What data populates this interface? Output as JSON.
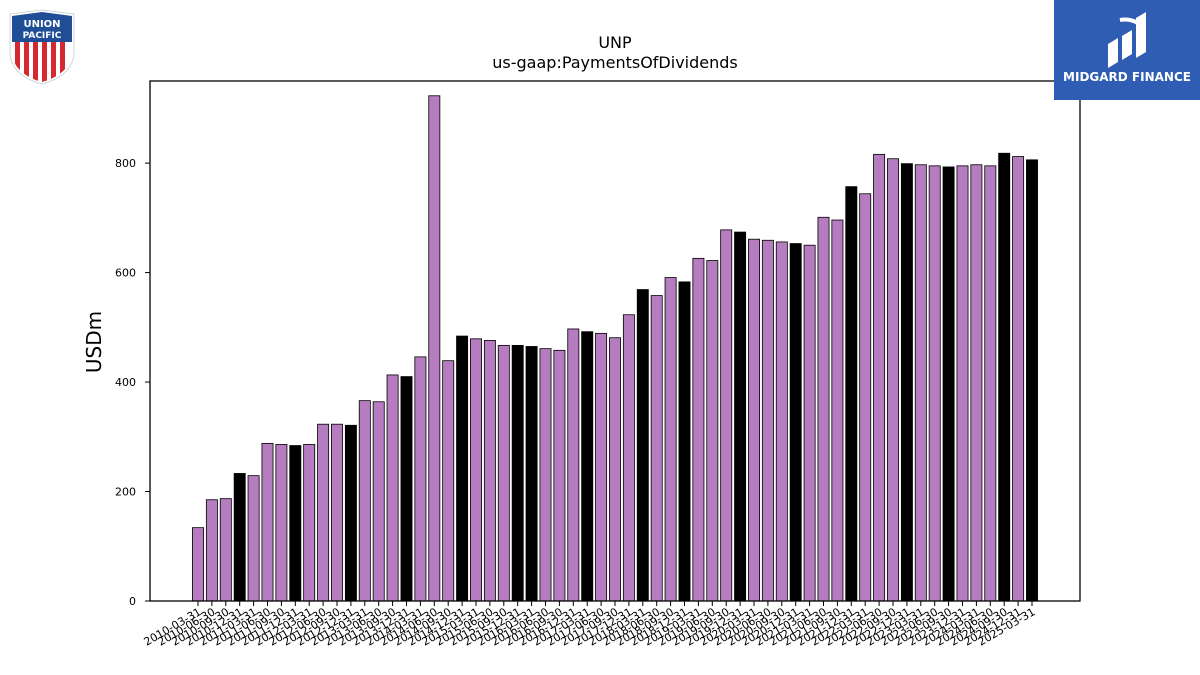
{
  "company_logo": {
    "icon": "union-pacific-shield-icon",
    "text_line1": "UNION",
    "text_line2": "PACIFIC",
    "colors": {
      "blue": "#1f4e96",
      "red": "#d6282f",
      "white": "#ffffff"
    }
  },
  "brand_logo": {
    "icon": "midgard-finance-logo-icon",
    "text": "MIDGARD FINANCE",
    "background": "#2f5db3"
  },
  "chart_data": {
    "type": "bar",
    "title": "UNP",
    "subtitle": "us-gaap:PaymentsOfDividends",
    "ylabel": "USDm",
    "xlabel": "",
    "ylim": [
      0,
      950
    ],
    "yticks": [
      0,
      200,
      400,
      600,
      800
    ],
    "grid": false,
    "legend": "none",
    "colors": {
      "quarter": "#b57cbf",
      "year_end": "#000000",
      "edge": "#000000"
    },
    "x_tick_labels": [
      "2010-03-31",
      "2010-06-30",
      "2010-09-30",
      "2010-12-31",
      "2011-03-31",
      "2011-06-30",
      "2011-09-30",
      "2011-12-31",
      "2012-03-31",
      "2012-06-30",
      "2012-09-30",
      "2012-12-31",
      "2013-03-31",
      "2013-06-30",
      "2013-09-30",
      "2013-12-31",
      "2014-03-31",
      "2014-06-30",
      "2014-09-30",
      "2014-12-31",
      "2015-03-31",
      "2015-06-30",
      "2015-09-30",
      "2015-12-31",
      "2016-03-31",
      "2016-06-30",
      "2016-09-30",
      "2016-12-31",
      "2017-03-31",
      "2017-06-30",
      "2017-09-30",
      "2017-12-31",
      "2018-03-31",
      "2018-06-30",
      "2018-09-30",
      "2018-12-31",
      "2019-03-31",
      "2019-06-30",
      "2019-09-30",
      "2019-12-31",
      "2020-03-31",
      "2020-06-30",
      "2020-09-30",
      "2020-12-31",
      "2021-03-31",
      "2021-06-30",
      "2021-09-30",
      "2021-12-31",
      "2022-03-31",
      "2022-06-30",
      "2022-09-30",
      "2022-12-31",
      "2023-03-31",
      "2023-06-30",
      "2023-09-30",
      "2023-12-31",
      "2024-03-31",
      "2024-06-30",
      "2024-09-30",
      "2024-12-31",
      "2025-03-31"
    ],
    "values": [
      134,
      185,
      187,
      233,
      229,
      288,
      286,
      284,
      286,
      323,
      323,
      321,
      366,
      364,
      413,
      410,
      446,
      923,
      439,
      484,
      479,
      476,
      467,
      467,
      465,
      461,
      458,
      497,
      492,
      489,
      481,
      523,
      569,
      558,
      591,
      583,
      626,
      622,
      678,
      674,
      661,
      659,
      656,
      653,
      650,
      701,
      696,
      757,
      744,
      816,
      808,
      799,
      797,
      795,
      793,
      795,
      797,
      795,
      818,
      812,
      806
    ],
    "year_end_flags": [
      false,
      false,
      false,
      true,
      false,
      false,
      false,
      true,
      false,
      false,
      false,
      true,
      false,
      false,
      false,
      true,
      false,
      false,
      false,
      true,
      false,
      false,
      false,
      true,
      true,
      false,
      false,
      false,
      true,
      false,
      false,
      false,
      true,
      false,
      false,
      true,
      false,
      false,
      false,
      true,
      false,
      false,
      false,
      true,
      false,
      false,
      false,
      true,
      false,
      false,
      false,
      true,
      false,
      false,
      true,
      false,
      false,
      false,
      true,
      false,
      true
    ]
  }
}
